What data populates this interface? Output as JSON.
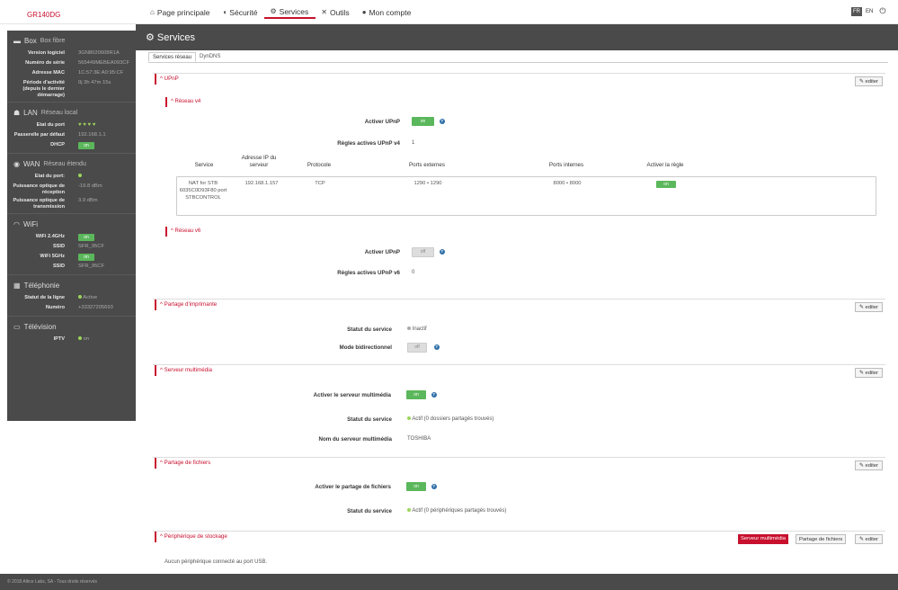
{
  "brand": "GR140DG",
  "nav": {
    "home": "Page principale",
    "security": "Sécurité",
    "services": "Services",
    "tools": "Outils",
    "account": "Mon compte"
  },
  "lang": {
    "fr": "FR",
    "en": "EN"
  },
  "sidebar": {
    "box": {
      "title": "Box",
      "subtitle": "Box fibre",
      "rows": [
        {
          "label": "Version logiciel",
          "value": "3GN8020608R1A"
        },
        {
          "label": "Numéro de série",
          "value": "565449MEBEA093CF"
        },
        {
          "label": "Adresse MAC",
          "value": "1C:57:3E:A0:95:CF"
        },
        {
          "label": "Période d'activité (depuis le dernier démarrage)",
          "value": "0j 3h 47m 15s"
        }
      ]
    },
    "lan": {
      "title": "LAN",
      "subtitle": "Réseau local",
      "port_label": "Etat du port",
      "gw_label": "Passerelle par défaut",
      "gw_value": "192.168.1.1",
      "dhcp_label": "DHCP",
      "dhcp_value": "on"
    },
    "wan": {
      "title": "WAN",
      "subtitle": "Réseau étendu",
      "port_label": "Etat du port:",
      "rx_label": "Puissance optique de réception",
      "rx_value": "-19.8 dBm",
      "tx_label": "Puissance optique de transmission",
      "tx_value": "3.9 dBm"
    },
    "wifi": {
      "title": "WiFi",
      "w24_label": "WiFi 2.4GHz",
      "w24_value": "on",
      "ssid1_label": "SSID",
      "ssid1_value": "SFR_95CF",
      "w5_label": "WiFi 5GHz",
      "w5_value": "on",
      "ssid2_label": "SSID",
      "ssid2_value": "SFR_95CF"
    },
    "tel": {
      "title": "Téléphonie",
      "line_label": "Statut de la ligne",
      "line_value": "Active",
      "num_label": "Numéro",
      "num_value": "+33327205693"
    },
    "tv": {
      "title": "Télévision",
      "iptv_label": "IPTV",
      "iptv_value": "on"
    }
  },
  "main": {
    "title": "Services",
    "tabs": [
      "Services réseau",
      "DynDNS"
    ],
    "edit_label": "editer",
    "upnp": {
      "head": "^ UPnP",
      "v4_head": "^ Réseau v4",
      "v4_enable_label": "Activer UPnP",
      "v4_enable_value": "on",
      "v4_rules_label": "Règles actives UPnP v4",
      "v4_rules_value": "1",
      "table_headers": [
        "Service",
        "Adresse IP du serveur",
        "Protocole",
        "Ports externes",
        "Ports internes",
        "Activer la règle"
      ],
      "row": {
        "service": "NAT for STB 6035C0D93F80 port STBCONTROL",
        "ip": "192.168.1.157",
        "proto": "TCP",
        "ext": "1290 • 1290",
        "int": "8000 • 8000",
        "enable": "on"
      },
      "v6_head": "^ Réseau v6",
      "v6_enable_label": "Activer UPnP",
      "v6_enable_value": "off",
      "v6_rules_label": "Règles actives UPnP v6",
      "v6_rules_value": "0"
    },
    "printer": {
      "head": "^ Partage d'imprimante",
      "status_label": "Statut du service",
      "status_value": "Inactif",
      "bidir_label": "Mode bidirectionnel",
      "bidir_value": "off"
    },
    "media": {
      "head": "^ Serveur multimédia",
      "enable_label": "Activer le serveur multimédia",
      "enable_value": "on",
      "status_label": "Statut du service",
      "status_value": "Actif (0 dossiers partagés trouvés)",
      "name_label": "Nom du serveur multimédia",
      "name_value": "TOSHIBA"
    },
    "files": {
      "head": "^ Partage de fichiers",
      "enable_label": "Activer le partage de fichiers",
      "enable_value": "on",
      "status_label": "Statut du service",
      "status_value": "Actif (0 périphériques partagés trouvés)"
    },
    "storage": {
      "head": "^ Périphérique de stockage",
      "btn_media": "Serveur multimédia",
      "btn_files": "Partage de fichiers",
      "msg": "Aucun périphérique connecté au port USB."
    }
  },
  "footer": "© 2018 Altice Labs, SA - Tous droits réservés"
}
